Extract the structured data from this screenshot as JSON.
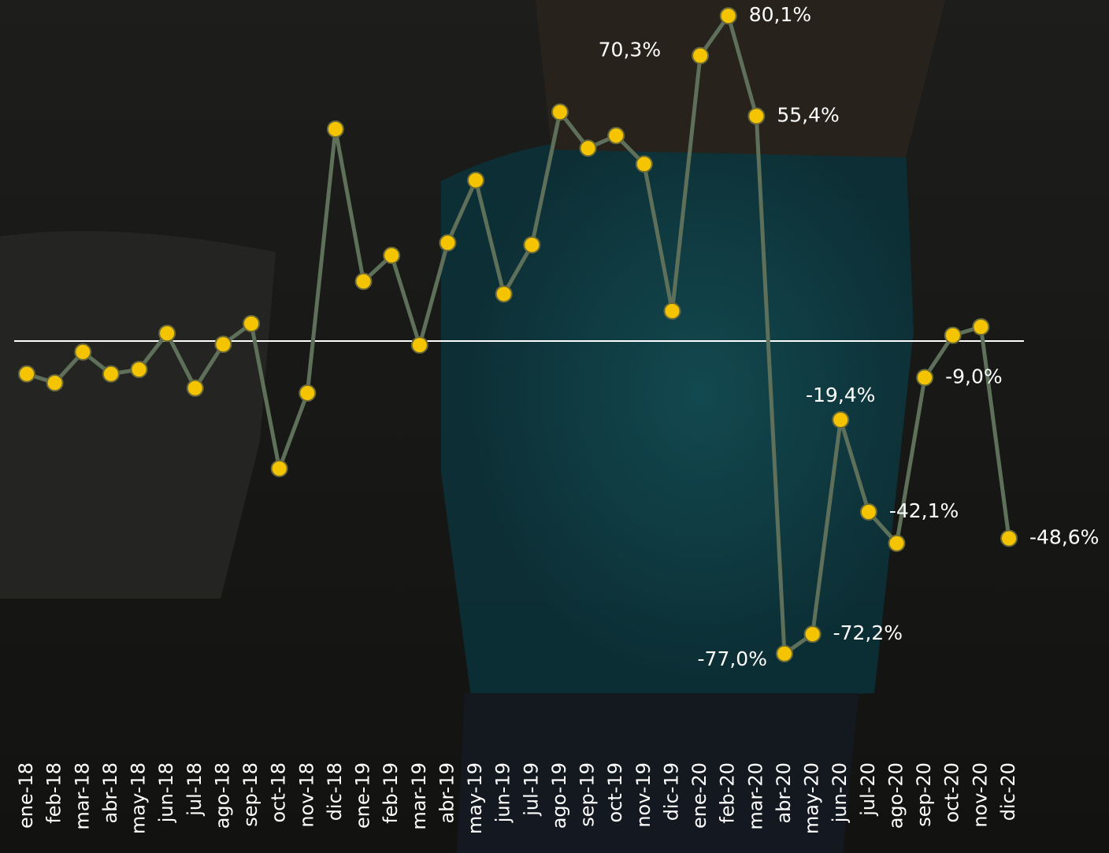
{
  "chart_data": {
    "type": "line",
    "categories": [
      "ene-18",
      "feb-18",
      "mar-18",
      "abr-18",
      "may-18",
      "jun-18",
      "jul-18",
      "ago-18",
      "sep-18",
      "oct-18",
      "nov-18",
      "dic-18",
      "ene-19",
      "feb-19",
      "mar-19",
      "abr-19",
      "may-19",
      "jun-19",
      "jul-19",
      "ago-19",
      "sep-19",
      "oct-19",
      "nov-19",
      "dic-19",
      "ene-20",
      "feb-20",
      "mar-20",
      "abr-20",
      "may-20",
      "jun-20",
      "jul-20",
      "ago-20",
      "sep-20",
      "oct-20",
      "nov-20",
      "dic-20"
    ],
    "values": [
      -8.1,
      -10.3,
      -2.7,
      -8.1,
      -7.0,
      1.9,
      -11.6,
      -0.8,
      4.3,
      -31.4,
      -12.8,
      52.2,
      14.7,
      21.1,
      -1.0,
      24.2,
      39.6,
      11.6,
      23.7,
      56.4,
      47.5,
      50.6,
      43.6,
      7.4,
      70.3,
      80.1,
      55.4,
      -77.0,
      -72.2,
      -19.4,
      -42.1,
      -49.8,
      -9.0,
      1.4,
      3.5,
      -48.6
    ],
    "value_labels": [
      null,
      null,
      null,
      null,
      null,
      null,
      null,
      null,
      null,
      null,
      null,
      null,
      null,
      null,
      null,
      null,
      null,
      null,
      null,
      null,
      null,
      null,
      null,
      null,
      "70,3%",
      "80,1%",
      "55,4%",
      "-77,0%",
      "-72,2%",
      "-19,4%",
      "-42,1%",
      null,
      "-9,0%",
      null,
      null,
      "-48,6%"
    ],
    "color": "#5e705a",
    "marker_color": "#f5c400",
    "ylim": [
      -84,
      84
    ]
  }
}
